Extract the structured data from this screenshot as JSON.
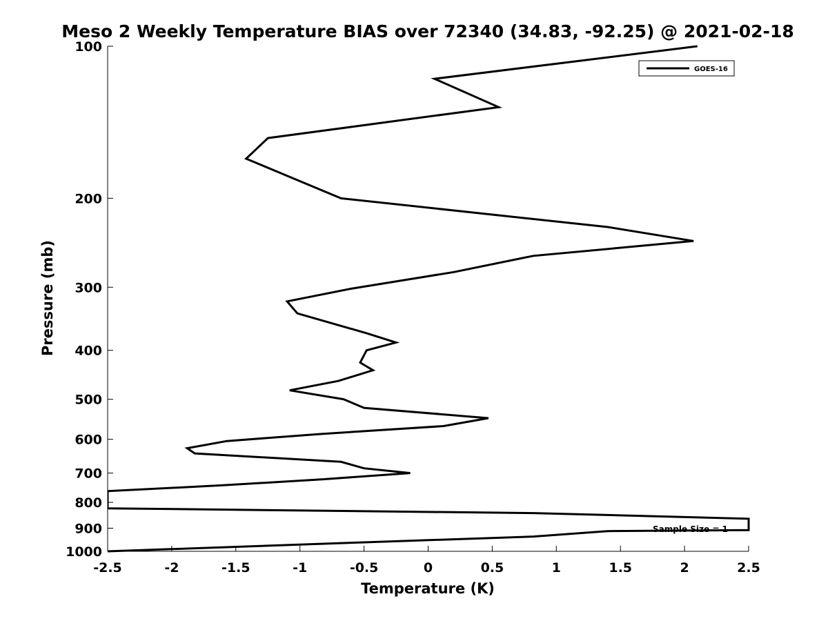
{
  "chart_data": {
    "type": "line",
    "title": "Meso 2 Weekly Temperature BIAS over 72340 (34.83, -92.25) @ 2021-02-18",
    "xlabel": "Temperature (K)",
    "ylabel": "Pressure (mb)",
    "xlim": [
      -2.5,
      2.5
    ],
    "ylim": [
      100,
      1000
    ],
    "y_scale": "log",
    "y_reversed": true,
    "x_ticks": [
      "-2.5",
      "-2",
      "-1.5",
      "-1",
      "-0.5",
      "0",
      "0.5",
      "1",
      "1.5",
      "2",
      "2.5"
    ],
    "x_tick_values": [
      -2.5,
      -2,
      -1.5,
      -1,
      -0.5,
      0,
      0.5,
      1,
      1.5,
      2,
      2.5
    ],
    "y_ticks": [
      "100",
      "200",
      "300",
      "400",
      "500",
      "600",
      "700",
      "800",
      "900",
      "1000"
    ],
    "y_tick_values": [
      100,
      200,
      300,
      400,
      500,
      600,
      700,
      800,
      900,
      1000
    ],
    "grid": false,
    "legend_position": "top-right",
    "annotation": "Sample Size = 1",
    "series": [
      {
        "name": "GOES-16",
        "color": "#000000",
        "points": [
          [
            2.1,
            100
          ],
          [
            0.05,
            116
          ],
          [
            0.55,
            132
          ],
          [
            -1.25,
            152
          ],
          [
            -1.42,
            167
          ],
          [
            -0.68,
            200
          ],
          [
            1.4,
            228
          ],
          [
            2.07,
            243
          ],
          [
            0.82,
            260
          ],
          [
            0.2,
            280
          ],
          [
            -0.6,
            302
          ],
          [
            -1.1,
            320
          ],
          [
            -1.02,
            338
          ],
          [
            -0.48,
            370
          ],
          [
            -0.25,
            386
          ],
          [
            -0.48,
            400
          ],
          [
            -0.53,
            423
          ],
          [
            -0.43,
            438
          ],
          [
            -0.7,
            460
          ],
          [
            -1.08,
            480
          ],
          [
            -0.66,
            500
          ],
          [
            -0.5,
            520
          ],
          [
            0.47,
            545
          ],
          [
            0.12,
            565
          ],
          [
            -0.85,
            586
          ],
          [
            -1.57,
            605
          ],
          [
            -1.88,
            625
          ],
          [
            -1.82,
            640
          ],
          [
            -0.68,
            665
          ],
          [
            -0.5,
            685
          ],
          [
            -0.14,
            700
          ],
          [
            -0.82,
            720
          ],
          [
            -1.6,
            740
          ],
          [
            -2.5,
            760
          ],
          [
            -2.5,
            822
          ],
          [
            0.82,
            840
          ],
          [
            2.5,
            862
          ],
          [
            2.5,
            908
          ],
          [
            1.4,
            912
          ],
          [
            0.82,
            935
          ],
          [
            -0.5,
            960
          ],
          [
            -2.5,
            1000
          ]
        ]
      }
    ]
  }
}
